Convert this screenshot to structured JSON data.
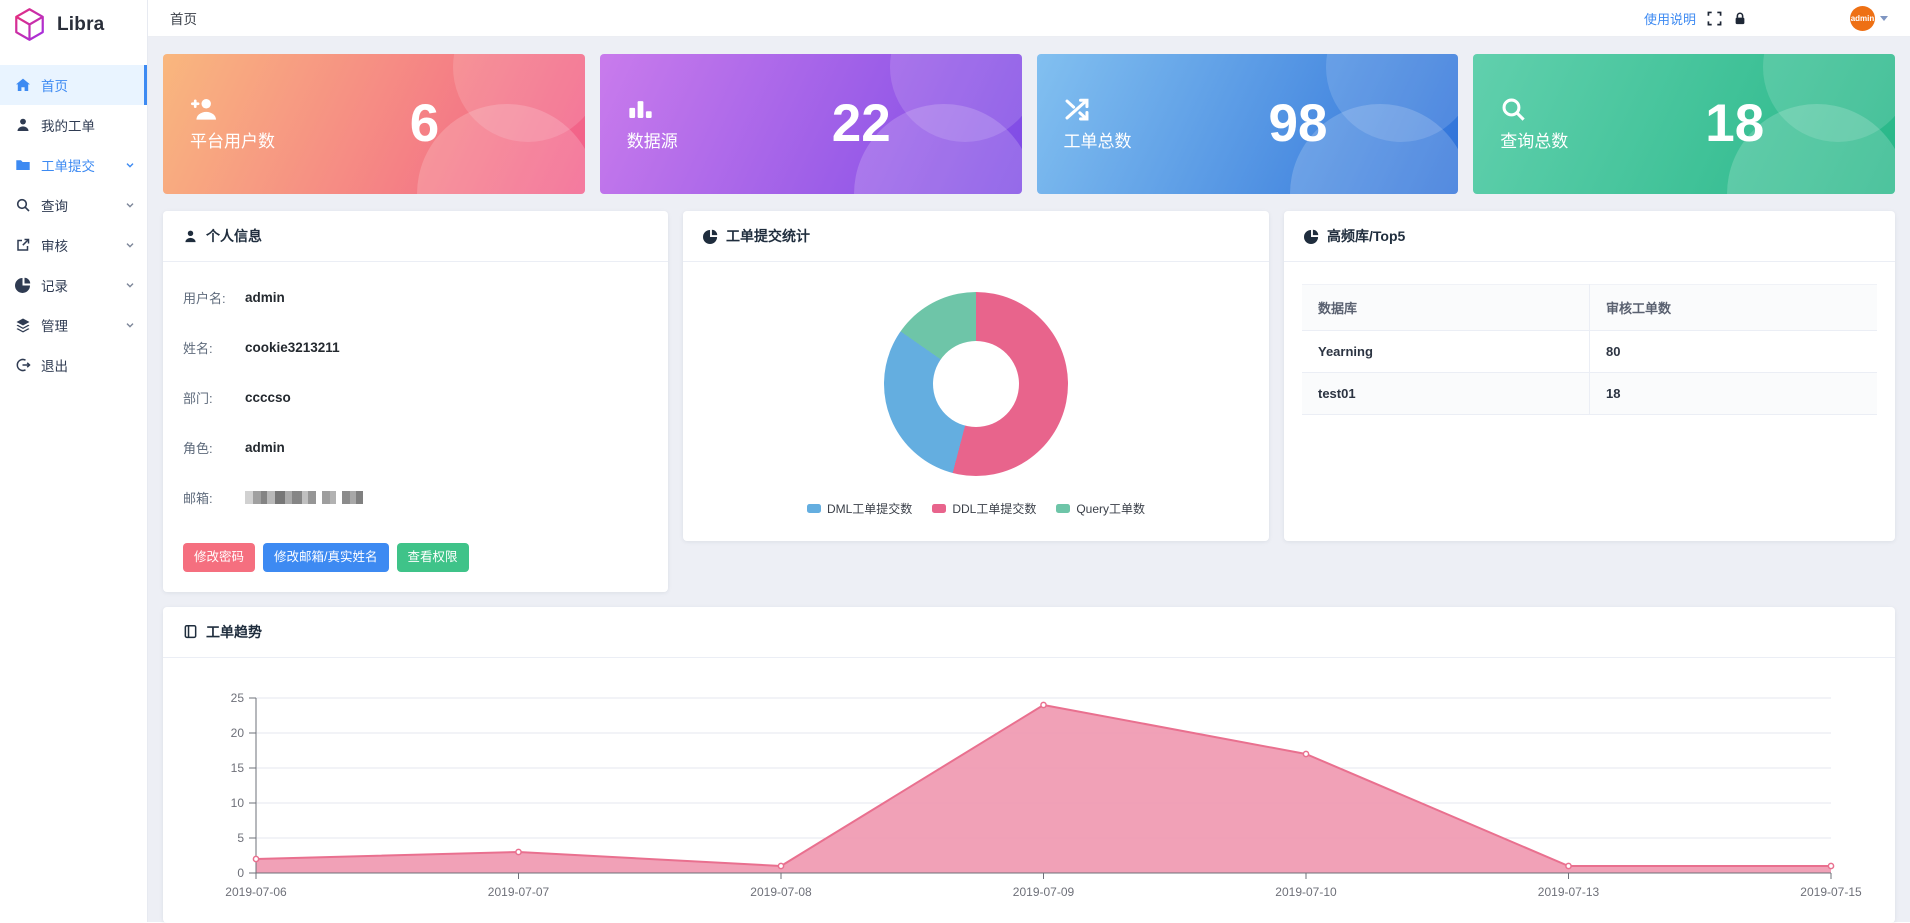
{
  "app": {
    "logo_text": "Libra",
    "logo_icon": "hexagon-cube-icon"
  },
  "topbar": {
    "breadcrumb": "首页",
    "help_link": "使用说明",
    "icons": [
      "fullscreen-icon",
      "lock-icon"
    ],
    "avatar_text": "admin"
  },
  "sidebar": {
    "items": [
      {
        "label": "首页",
        "icon": "home-icon",
        "active": true,
        "expandable": false
      },
      {
        "label": "我的工单",
        "icon": "user-icon",
        "active": false,
        "expandable": false
      },
      {
        "label": "工单提交",
        "icon": "folder-icon",
        "active": false,
        "highlighted": true,
        "expandable": true
      },
      {
        "label": "查询",
        "icon": "search-icon",
        "active": false,
        "expandable": true
      },
      {
        "label": "审核",
        "icon": "external-link-icon",
        "active": false,
        "expandable": true
      },
      {
        "label": "记录",
        "icon": "pie-chart-icon",
        "active": false,
        "expandable": true
      },
      {
        "label": "管理",
        "icon": "layers-icon",
        "active": false,
        "expandable": true
      },
      {
        "label": "退出",
        "icon": "logout-icon",
        "active": false,
        "expandable": false
      }
    ]
  },
  "stat_cards": [
    {
      "label": "平台用户数",
      "value": "6",
      "icon": "user-plus-icon",
      "gradient": [
        "#f9b77e",
        "#f25d8a"
      ]
    },
    {
      "label": "数据源",
      "value": "22",
      "icon": "bar-chart-icon",
      "gradient": [
        "#c97bec",
        "#7d4ae5"
      ]
    },
    {
      "label": "工单总数",
      "value": "98",
      "icon": "shuffle-icon",
      "gradient": [
        "#82c0f0",
        "#2e71d9"
      ]
    },
    {
      "label": "查询总数",
      "value": "18",
      "icon": "search-icon",
      "gradient": [
        "#61d0ad",
        "#27b788"
      ]
    }
  ],
  "profile": {
    "title": "个人信息",
    "fields": [
      {
        "label": "用户名:",
        "value": "admin"
      },
      {
        "label": "姓名:",
        "value": "cookie3213211"
      },
      {
        "label": "部门:",
        "value": "ccccso"
      },
      {
        "label": "角色:",
        "value": "admin"
      },
      {
        "label": "邮箱:",
        "value": "",
        "redacted": true
      }
    ],
    "buttons": [
      {
        "label": "修改密码",
        "color": "#f56f7f"
      },
      {
        "label": "修改邮箱/真实姓名",
        "color": "#3d8af2"
      },
      {
        "label": "查看权限",
        "color": "#3fc389"
      }
    ]
  },
  "donut_panel": {
    "title": "工单提交统计"
  },
  "top5_panel": {
    "title": "高频库/Top5",
    "columns": [
      "数据库",
      "审核工单数"
    ],
    "rows": [
      [
        "Yearning",
        "80"
      ],
      [
        "test01",
        "18"
      ]
    ]
  },
  "trend_panel": {
    "title": "工单趋势"
  },
  "chart_data": [
    {
      "type": "pie",
      "donut": true,
      "title": "工单提交统计",
      "labels": [
        "DML工单提交数",
        "DDL工单提交数",
        "Query工单数"
      ],
      "values": [
        30,
        53,
        15
      ],
      "colors": [
        "#64aee0",
        "#e8648c",
        "#6ec5a8"
      ],
      "draw_order_clockwise_from_top": [
        1,
        0,
        2
      ],
      "legend_position": "bottom"
    },
    {
      "type": "area",
      "title": "工单趋势",
      "x": [
        "2019-07-06",
        "2019-07-07",
        "2019-07-08",
        "2019-07-09",
        "2019-07-10",
        "2019-07-13",
        "2019-07-15"
      ],
      "values": [
        2,
        3,
        1,
        24,
        17,
        1,
        1
      ],
      "ylim": [
        0,
        25
      ],
      "yticks": [
        0,
        5,
        10,
        15,
        20,
        25
      ],
      "grid": true,
      "legend_position": "none",
      "line_color": "#e9708f",
      "fill_color": "#f09cb3",
      "axis_color": "#6e7079",
      "grid_color": "#e4e7ef"
    }
  ]
}
